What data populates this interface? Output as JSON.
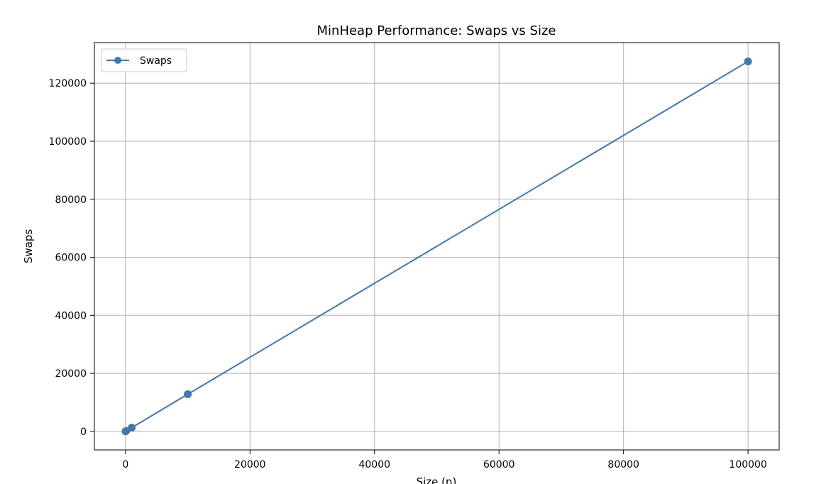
{
  "chart_data": {
    "type": "line",
    "title": "MinHeap Performance: Swaps vs Size",
    "xlabel": "Size (n)",
    "ylabel": "Swaps",
    "xlim": [
      -5000,
      105000
    ],
    "ylim": [
      -6400,
      134000
    ],
    "xticks": [
      0,
      20000,
      40000,
      60000,
      80000,
      100000
    ],
    "yticks": [
      0,
      20000,
      40000,
      60000,
      80000,
      100000,
      120000
    ],
    "xtick_labels": [
      "0",
      "20000",
      "40000",
      "60000",
      "80000",
      "100000"
    ],
    "ytick_labels": [
      "0",
      "20000",
      "40000",
      "60000",
      "80000",
      "100000",
      "120000"
    ],
    "grid": true,
    "legend_position": "top-left",
    "series": [
      {
        "name": "Swaps",
        "color": "#4477aa",
        "marker": "circle",
        "x": [
          10,
          100,
          1000,
          10000,
          100000
        ],
        "y": [
          10,
          120,
          1270,
          12800,
          127500
        ]
      }
    ]
  }
}
